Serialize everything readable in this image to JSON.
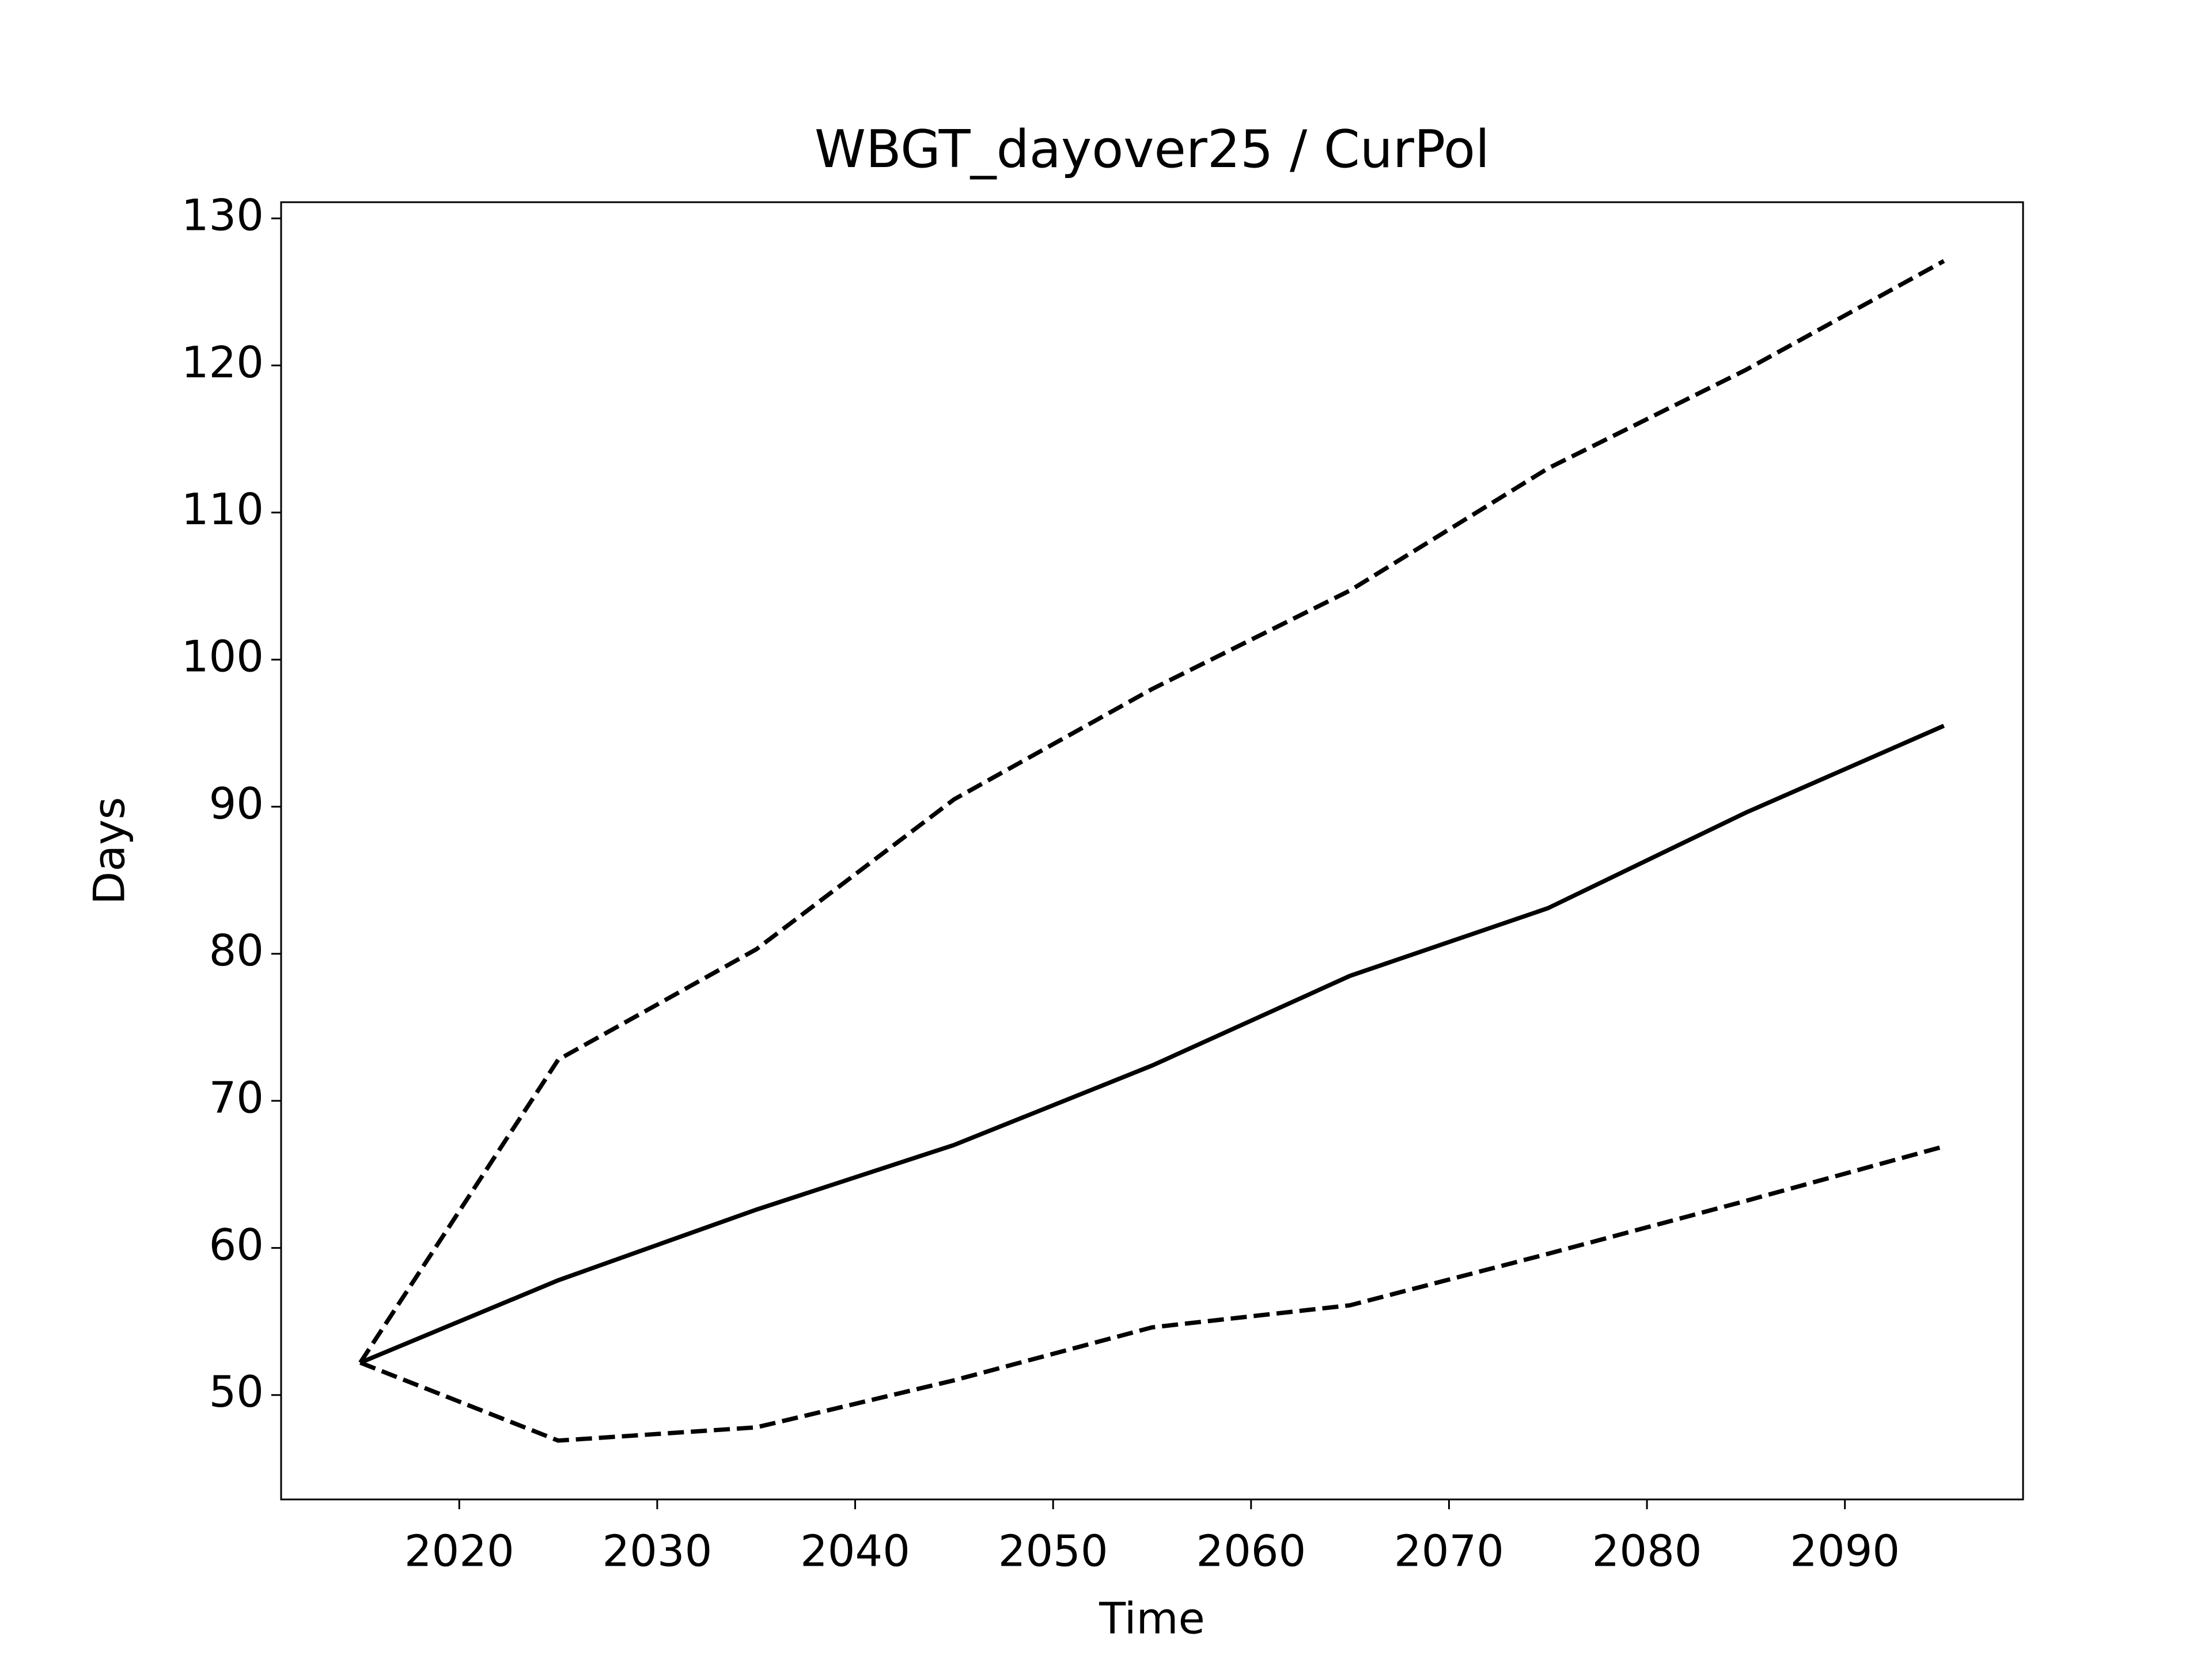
{
  "chart_data": {
    "type": "line",
    "title": "WBGT_dayover25 / CurPol",
    "xlabel": "Time",
    "ylabel": "Days",
    "x": [
      2015,
      2025,
      2035,
      2045,
      2055,
      2065,
      2075,
      2085,
      2095
    ],
    "series": [
      {
        "color": "#000000",
        "linestyle": "solid",
        "values": [
          52.2,
          57.8,
          62.6,
          67.0,
          72.4,
          78.5,
          83.1,
          89.6,
          95.5
        ]
      },
      {
        "color": "#000000",
        "linestyle": "dashed",
        "values": [
          52.2,
          72.8,
          80.3,
          90.5,
          98.0,
          104.7,
          113.0,
          119.7,
          127.1
        ]
      },
      {
        "color": "#000000",
        "linestyle": "dashed",
        "values": [
          52.2,
          46.9,
          47.8,
          51.0,
          54.6,
          56.1,
          59.6,
          63.2,
          66.9
        ]
      }
    ],
    "xlim": [
      2011.0,
      2099.0
    ],
    "xticks": [
      2020,
      2030,
      2040,
      2050,
      2060,
      2070,
      2080,
      2090
    ],
    "ylim": [
      42.9,
      131.1
    ],
    "yticks": [
      50,
      60,
      70,
      80,
      90,
      100,
      110,
      120,
      130
    ],
    "grid": false
  }
}
